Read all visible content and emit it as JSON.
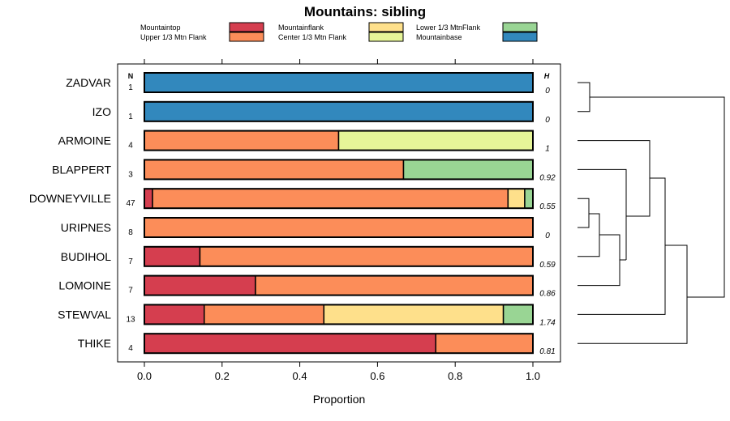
{
  "chart_data": {
    "type": "bar",
    "stacked": true,
    "orientation": "horizontal",
    "title": "Mountains: sibling",
    "xlabel": "Proportion",
    "ylabel": "",
    "xlim": [
      0,
      1
    ],
    "x_ticks": [
      "0.0",
      "0.2",
      "0.4",
      "0.6",
      "0.8",
      "1.0"
    ],
    "n_header": "N",
    "h_header": "H",
    "legend": [
      {
        "name": "Mountaintop",
        "color": "#d53e4f"
      },
      {
        "name": "Upper 1/3 Mtn Flank",
        "color": "#fc8d59"
      },
      {
        "name": "Mountainflank",
        "color": "#fee08b"
      },
      {
        "name": "Center 1/3 Mtn Flank",
        "color": "#e6f598"
      },
      {
        "name": "Lower 1/3 MtnFlank",
        "color": "#99d594"
      },
      {
        "name": "Mountainbase",
        "color": "#3288bd"
      }
    ],
    "categories": [
      "ZADVAR",
      "IZO",
      "ARMOINE",
      "BLAPPERT",
      "DOWNEYVILLE",
      "URIPNES",
      "BUDIHOL",
      "LOMOINE",
      "STEWVAL",
      "THIKE"
    ],
    "n_values": [
      "1",
      "1",
      "4",
      "3",
      "47",
      "8",
      "7",
      "7",
      "13",
      "4"
    ],
    "h_values": [
      "0",
      "0",
      "1",
      "0.92",
      "0.55",
      "0",
      "0.59",
      "0.86",
      "1.74",
      "0.81"
    ],
    "series": [
      {
        "name": "Mountaintop",
        "values": [
          0,
          0,
          0,
          0,
          0.021,
          0,
          0.143,
          0.286,
          0.154,
          0.75
        ]
      },
      {
        "name": "Upper 1/3 Mtn Flank",
        "values": [
          0,
          0,
          0.5,
          0.667,
          0.915,
          1.0,
          0.857,
          0.714,
          0.308,
          0.25
        ]
      },
      {
        "name": "Mountainflank",
        "values": [
          0,
          0,
          0,
          0,
          0.043,
          0,
          0,
          0,
          0.462,
          0
        ]
      },
      {
        "name": "Center 1/3 Mtn Flank",
        "values": [
          0,
          0,
          0.5,
          0,
          0,
          0,
          0,
          0,
          0,
          0
        ]
      },
      {
        "name": "Lower 1/3 MtnFlank",
        "values": [
          0,
          0,
          0,
          0.333,
          0.021,
          0,
          0,
          0,
          0.076,
          0
        ]
      },
      {
        "name": "Mountainbase",
        "values": [
          1.0,
          1.0,
          0,
          0,
          0,
          0,
          0,
          0,
          0,
          0
        ]
      }
    ],
    "dendrogram": true
  }
}
